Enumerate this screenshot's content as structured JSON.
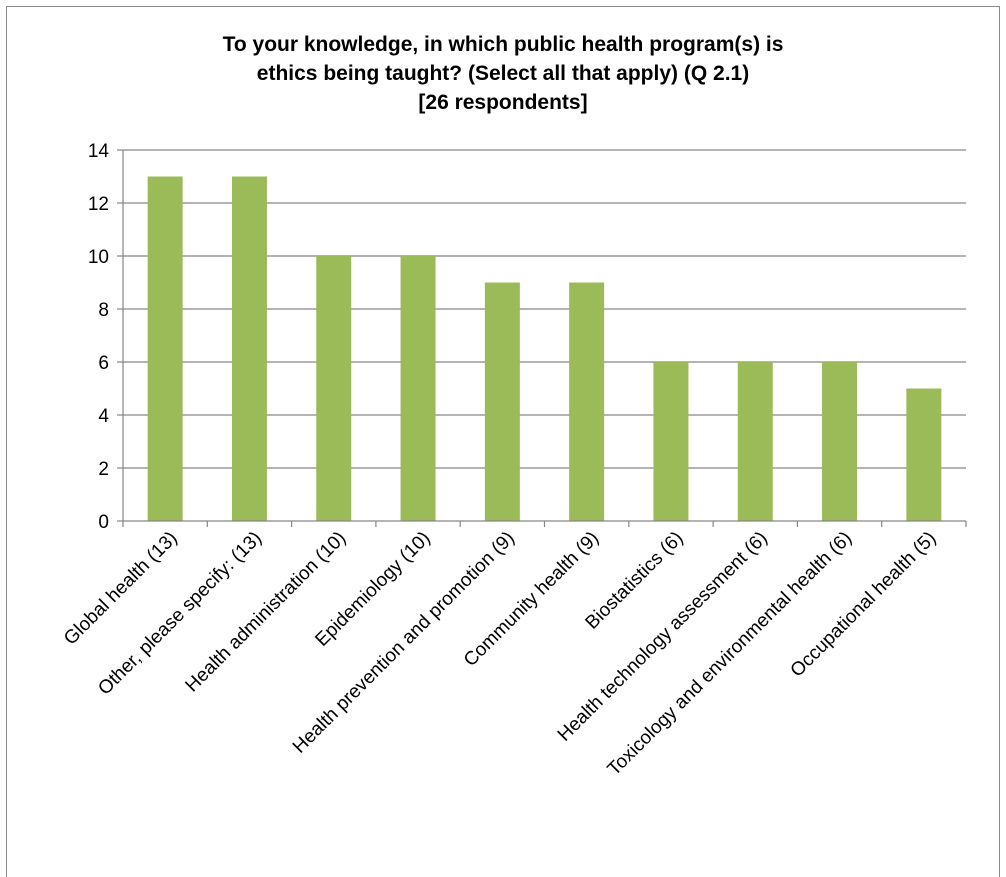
{
  "chart_data": {
    "type": "bar",
    "title_lines": [
      "To your knowledge, in which public health program(s) is",
      "ethics being taught? (Select all that apply) (Q 2.1)",
      "[26 respondents]"
    ],
    "categories": [
      "Global health (13)",
      "Other, please specify: (13)",
      "Health administration (10)",
      "Epidemiology (10)",
      "Health prevention and promotion (9)",
      "Community health (9)",
      "Biostatistics (6)",
      "Health technology assessment (6)",
      "Toxicology and environmental health (6)",
      "Occupational health (5)"
    ],
    "values": [
      13,
      13,
      10,
      10,
      9,
      9,
      6,
      6,
      6,
      5
    ],
    "ylim": [
      0,
      14
    ],
    "yticks": [
      0,
      2,
      4,
      6,
      8,
      10,
      12,
      14
    ],
    "xlabel": "",
    "ylabel": "",
    "grid": true,
    "legend": "none",
    "colors": {
      "bar": "#9bbb59",
      "grid": "#868686",
      "axis": "#868686",
      "text": "#000000"
    }
  }
}
